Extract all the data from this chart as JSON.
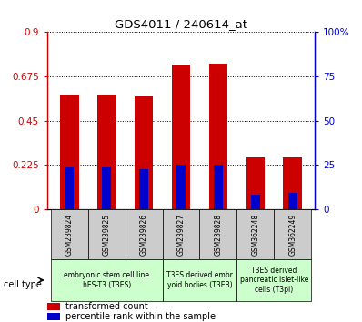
{
  "title": "GDS4011 / 240614_at",
  "samples": [
    "GSM239824",
    "GSM239825",
    "GSM239826",
    "GSM239827",
    "GSM239828",
    "GSM362248",
    "GSM362249"
  ],
  "red_values": [
    0.585,
    0.585,
    0.575,
    0.735,
    0.74,
    0.265,
    0.265
  ],
  "blue_pct": [
    23.5,
    23.5,
    22.8,
    25.0,
    25.0,
    8.3,
    9.5
  ],
  "ylim_left": [
    0,
    0.9
  ],
  "ylim_right": [
    0,
    100
  ],
  "yticks_left": [
    0,
    0.225,
    0.45,
    0.675,
    0.9
  ],
  "yticks_right": [
    0,
    25,
    50,
    75,
    100
  ],
  "ytick_labels_left": [
    "0",
    "0.225",
    "0.45",
    "0.675",
    "0.9"
  ],
  "ytick_labels_right": [
    "0",
    "25",
    "50",
    "75",
    "100%"
  ],
  "left_axis_color": "#cc0000",
  "right_axis_color": "#0000cc",
  "bar_red_color": "#cc0000",
  "bar_blue_color": "#0000cc",
  "bar_width": 0.5,
  "groups": [
    {
      "indices": [
        0,
        1,
        2
      ],
      "label": "embryonic stem cell line\nhES-T3 (T3ES)"
    },
    {
      "indices": [
        3,
        4
      ],
      "label": "T3ES derived embr\nyoid bodies (T3EB)"
    },
    {
      "indices": [
        5,
        6
      ],
      "label": "T3ES derived\npancreatic islet-like\ncells (T3pi)"
    }
  ],
  "legend_red": "transformed count",
  "legend_blue": "percentile rank within the sample",
  "cell_type_label": "cell type"
}
